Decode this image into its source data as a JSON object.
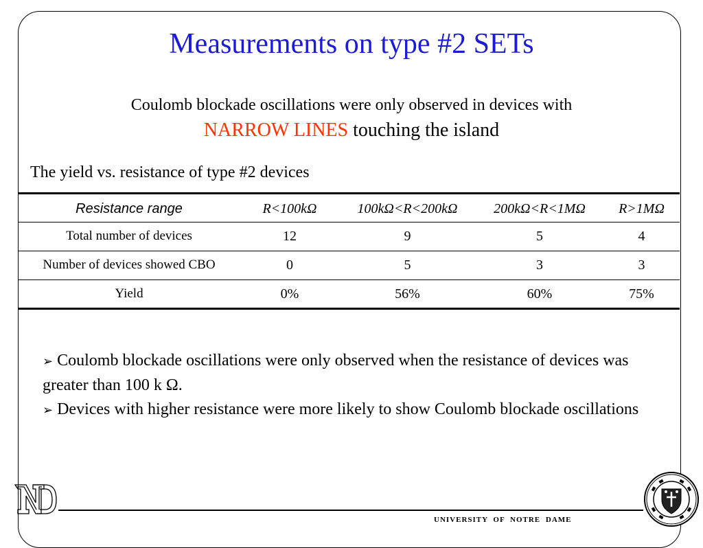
{
  "slide": {
    "title": "Measurements on type #2 SETs",
    "subtitle_line1": "Coulomb blockade oscillations were only observed in devices with",
    "subtitle_highlight": "NARROW LINES",
    "subtitle_rest": " touching the island",
    "table_caption": "The yield vs. resistance of type #2 devices"
  },
  "table": {
    "header": {
      "label": "Resistance range",
      "cols": [
        "R<100kΩ",
        "100kΩ<R<200kΩ",
        "200kΩ<R<1MΩ",
        "R>1MΩ"
      ]
    },
    "rows": [
      {
        "label": "Total number of devices",
        "cells": [
          "12",
          "9",
          "5",
          "4"
        ]
      },
      {
        "label": "Number of devices showed CBO",
        "cells": [
          "0",
          "5",
          "3",
          "3"
        ]
      },
      {
        "label": "Yield",
        "cells": [
          "0%",
          "56%",
          "60%",
          "75%"
        ]
      }
    ]
  },
  "bullets": [
    "Coulomb blockade oscillations were only observed when the resistance of devices was greater than 100 k Ω.",
    "Devices with higher resistance were more likely to show Coulomb blockade oscillations"
  ],
  "bullet_icon": "arrow-bullet-icon",
  "footer": {
    "university": "UNIVERSITY OF NOTRE DAME",
    "logo_text": "ND",
    "seal_text": "UNIVERSITY OF NOTRE DAME DU LAC"
  },
  "colors": {
    "title": "#1c1cd6",
    "highlight": "#ff3300"
  }
}
